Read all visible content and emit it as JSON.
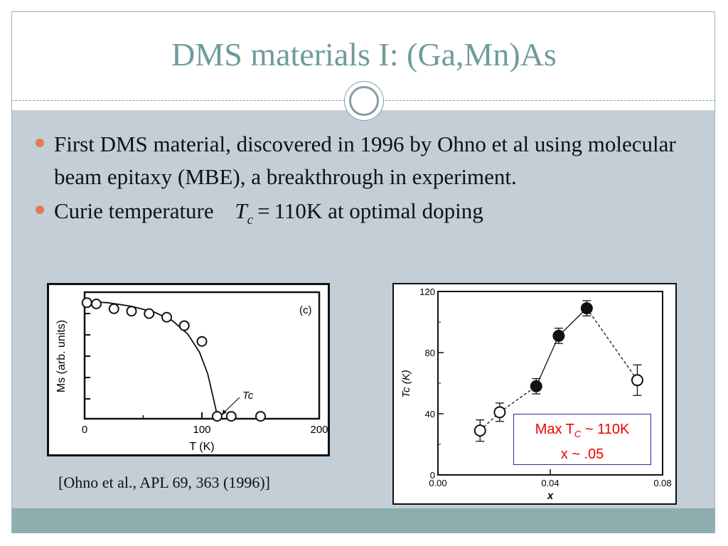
{
  "slide": {
    "title": "DMS materials I: (Ga,Mn)As",
    "bullets": [
      {
        "text": "First DMS material, discovered in 1996 by Ohno et al using molecular beam epitaxy (MBE), a breakthrough in experiment."
      },
      {
        "text_before": "Curie temperature",
        "math_symbol": "T",
        "math_subscript": "c",
        "math_equals": "=",
        "math_value": "110",
        "text_after": "K at optimal doping"
      }
    ],
    "citation": "[Ohno et al., APL 69, 363 (1996)]"
  },
  "colors": {
    "title": "#6f9b9c",
    "content_background": "#c3ced6",
    "footer_band": "#8caeae",
    "bullet": "#e07b53",
    "callout_text": "#ee0000",
    "callout_border": "#2b2b9b"
  },
  "chart_data": [
    {
      "type": "scatter",
      "title": "",
      "panel_label": "(c)",
      "xlabel": "T (K)",
      "ylabel": "Ms (arb. units)",
      "xlim": [
        0,
        200
      ],
      "x_ticks": [
        0,
        100,
        200
      ],
      "annotation": "Tc",
      "series": [
        {
          "marker": "open-circle",
          "points": [
            {
              "x": 2,
              "y": 0.96
            },
            {
              "x": 10,
              "y": 0.95
            },
            {
              "x": 25,
              "y": 0.91
            },
            {
              "x": 40,
              "y": 0.89
            },
            {
              "x": 55,
              "y": 0.87
            },
            {
              "x": 70,
              "y": 0.84
            },
            {
              "x": 85,
              "y": 0.77
            },
            {
              "x": 100,
              "y": 0.64
            },
            {
              "x": 113,
              "y": 0.02
            },
            {
              "x": 125,
              "y": 0.02
            },
            {
              "x": 150,
              "y": 0.02
            }
          ]
        }
      ],
      "fit_curve": [
        {
          "x": 0,
          "y": 0.97
        },
        {
          "x": 20,
          "y": 0.96
        },
        {
          "x": 40,
          "y": 0.93
        },
        {
          "x": 60,
          "y": 0.88
        },
        {
          "x": 75,
          "y": 0.81
        },
        {
          "x": 88,
          "y": 0.7
        },
        {
          "x": 98,
          "y": 0.55
        },
        {
          "x": 105,
          "y": 0.37
        },
        {
          "x": 110,
          "y": 0.16
        },
        {
          "x": 113,
          "y": 0.03
        },
        {
          "x": 116,
          "y": 0.0
        }
      ]
    },
    {
      "type": "scatter",
      "title": "",
      "xlabel": "x",
      "ylabel": "Tc (K)",
      "xlim": [
        0,
        0.08
      ],
      "ylim": [
        0,
        120
      ],
      "x_ticks": [
        "0.00",
        "0.04",
        "0.08"
      ],
      "y_ticks": [
        "0",
        "40",
        "80",
        "120"
      ],
      "series": [
        {
          "points": [
            {
              "x": 0.015,
              "y": 29,
              "err": 7,
              "filled": false
            },
            {
              "x": 0.022,
              "y": 41,
              "err": 6,
              "filled": false
            },
            {
              "x": 0.035,
              "y": 58,
              "err": 5,
              "filled": true
            },
            {
              "x": 0.043,
              "y": 91,
              "err": 5,
              "filled": true
            },
            {
              "x": 0.053,
              "y": 109,
              "err": 5,
              "filled": true
            },
            {
              "x": 0.071,
              "y": 62,
              "err": 10,
              "filled": false
            }
          ]
        }
      ],
      "callout": {
        "line1_prefix": "Max T",
        "line1_sub": "C",
        "line1_suffix": " ~ 110K",
        "line2": "x ~ .05"
      }
    }
  ]
}
